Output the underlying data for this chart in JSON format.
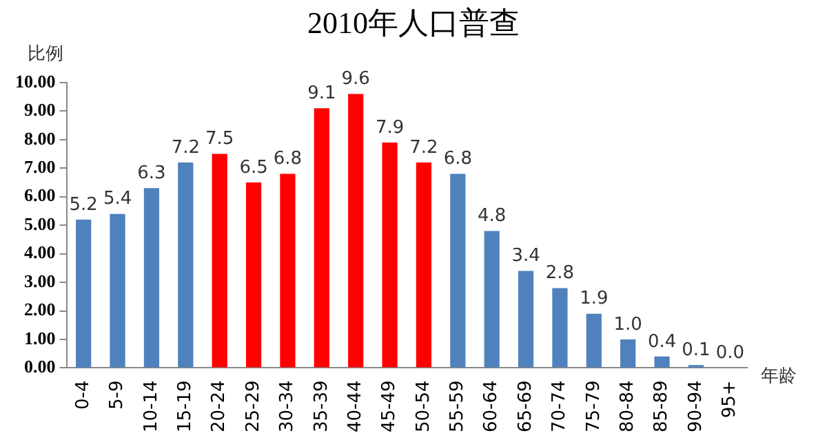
{
  "chart_data": {
    "type": "bar",
    "title": "2010年人口普查",
    "xlabel": "年龄",
    "ylabel": "比例",
    "categories": [
      "0-4",
      "5-9",
      "10-14",
      "15-19",
      "20-24",
      "25-29",
      "30-34",
      "35-39",
      "40-44",
      "45-49",
      "50-54",
      "55-59",
      "60-64",
      "65-69",
      "70-74",
      "75-79",
      "80-84",
      "85-89",
      "90-94",
      "95+"
    ],
    "values": [
      5.2,
      5.4,
      6.3,
      7.2,
      7.5,
      6.5,
      6.8,
      9.1,
      9.6,
      7.9,
      7.2,
      6.8,
      4.8,
      3.4,
      2.8,
      1.9,
      1.0,
      0.4,
      0.1,
      0.0
    ],
    "colors": [
      "#4f81bd",
      "#4f81bd",
      "#4f81bd",
      "#4f81bd",
      "#ff0000",
      "#ff0000",
      "#ff0000",
      "#ff0000",
      "#ff0000",
      "#ff0000",
      "#ff0000",
      "#4f81bd",
      "#4f81bd",
      "#4f81bd",
      "#4f81bd",
      "#4f81bd",
      "#4f81bd",
      "#4f81bd",
      "#4f81bd",
      "#4f81bd"
    ],
    "value_labels": [
      "5.2",
      "5.4",
      "6.3",
      "7.2",
      "7.5",
      "6.5",
      "6.8",
      "9.1",
      "9.6",
      "7.9",
      "7.2",
      "6.8",
      "4.8",
      "3.4",
      "2.8",
      "1.9",
      "1.0",
      "0.4",
      "0.1",
      "0.0"
    ],
    "ylim": [
      0,
      10
    ],
    "yticks": [
      {
        "value": 0,
        "label": "0.00"
      },
      {
        "value": 1,
        "label": "1.00"
      },
      {
        "value": 2,
        "label": "2.00"
      },
      {
        "value": 3,
        "label": "3.00"
      },
      {
        "value": 4,
        "label": "4.00"
      },
      {
        "value": 5,
        "label": "5.00"
      },
      {
        "value": 6,
        "label": "6.00"
      },
      {
        "value": 7,
        "label": "7.00"
      },
      {
        "value": 8,
        "label": "8.00"
      },
      {
        "value": 9,
        "label": "9.00"
      },
      {
        "value": 10,
        "label": "10.00"
      }
    ],
    "grid": false,
    "legend": false
  }
}
